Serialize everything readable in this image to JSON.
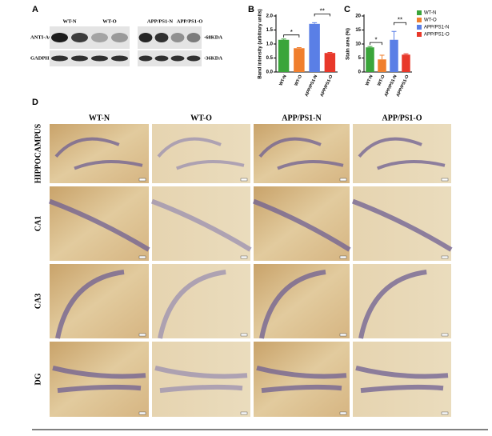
{
  "panel_a": {
    "label": "A",
    "groups": [
      "WT-N",
      "WT-O",
      "APP/PS1-N",
      "APP/PS1-O"
    ],
    "rows": [
      "ANTI-ACHE",
      "GADPH"
    ],
    "markers": [
      "-68KDA",
      "-36KDA"
    ]
  },
  "chart_data": [
    {
      "type": "bar",
      "panel": "B",
      "y_label": "Band intensity (arbitrary units)",
      "categories": [
        "WT-N",
        "WT-O",
        "APP/PS1-N",
        "APP/PS1-O"
      ],
      "values": [
        1.15,
        0.85,
        1.72,
        0.68
      ],
      "errors": [
        0.03,
        0.02,
        0.04,
        0.02
      ],
      "colors": [
        "#3aa53a",
        "#f07f2e",
        "#5a7fe6",
        "#e8382a"
      ],
      "ylim": [
        0,
        2
      ],
      "yticks": [
        {
          "value": 0,
          "label": "0.0"
        },
        0.5,
        {
          "value": 1,
          "label": "1.0"
        },
        1.5,
        {
          "value": 2,
          "label": "2.0"
        }
      ],
      "annotations": [
        "*",
        "**"
      ]
    },
    {
      "type": "bar",
      "panel": "C",
      "y_label": "Stain area (%)",
      "categories": [
        "WT-N",
        "WT-O",
        "APP/PS1-N",
        "APP/PS1-O"
      ],
      "values": [
        8.8,
        4.5,
        11.5,
        6.2
      ],
      "errors": [
        0.3,
        1.5,
        3.0,
        0.3
      ],
      "colors": [
        "#3aa53a",
        "#f07f2e",
        "#5a7fe6",
        "#e8382a"
      ],
      "ylim": [
        0,
        20
      ],
      "yticks": [
        0,
        5,
        10,
        15,
        20
      ],
      "annotations": [
        "*",
        "**"
      ],
      "legend": true
    }
  ],
  "panel_d": {
    "label": "D",
    "columns": [
      "WT-N",
      "WT-O",
      "APP/PS1-N",
      "APP/PS1-O"
    ],
    "rows": [
      "HIPPOCAMPUS",
      "CA1",
      "CA3",
      "DG"
    ]
  }
}
